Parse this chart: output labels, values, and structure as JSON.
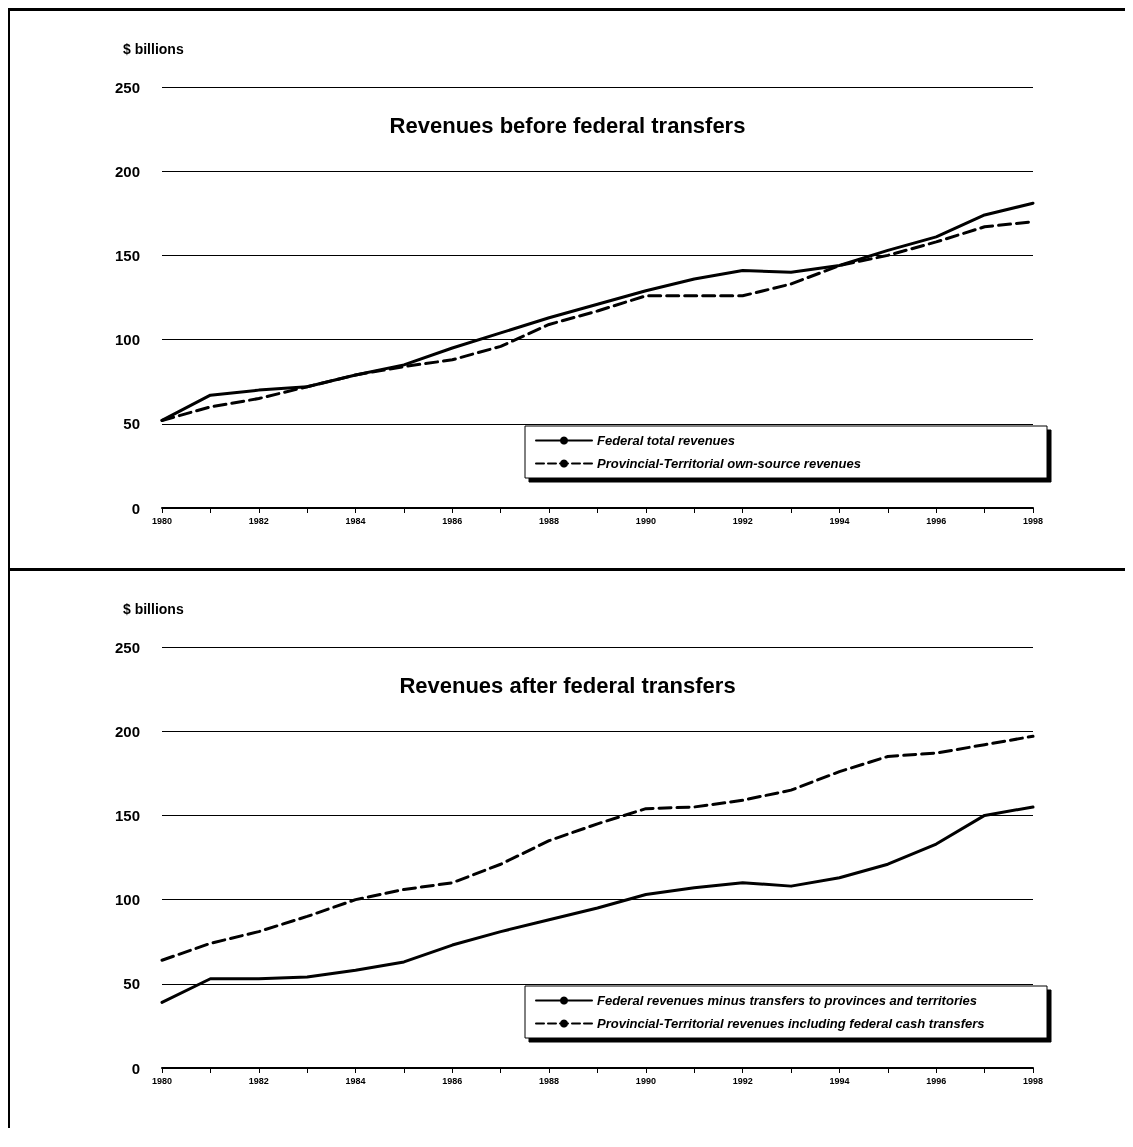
{
  "chart_data": [
    {
      "type": "line",
      "title": "Revenues before federal transfers",
      "ylabel": "$ billions",
      "categories": [
        "1980",
        null,
        "1982",
        null,
        "1984",
        null,
        "1986",
        null,
        "1988",
        null,
        "1990",
        null,
        "1992",
        null,
        "1994",
        null,
        "1996",
        null,
        "1998"
      ],
      "ylim": [
        0,
        250
      ],
      "yticks": [
        0,
        50,
        100,
        150,
        200,
        250
      ],
      "grid": "y",
      "legend": "bottom right",
      "marker": "none",
      "series": [
        {
          "name": "Federal total revenues",
          "color": "#000000",
          "line_style": "solid",
          "values": [
            52,
            67,
            70,
            72,
            79,
            85,
            95,
            104,
            113,
            121,
            129,
            136,
            141,
            140,
            144,
            153,
            161,
            174,
            181
          ]
        },
        {
          "name": "Provincial-Territorial own-source revenues",
          "color": "#000000",
          "line_style": "dashed",
          "values": [
            52,
            60,
            65,
            72,
            79,
            84,
            88,
            96,
            109,
            117,
            126,
            126,
            126,
            133,
            144,
            150,
            158,
            167,
            170
          ]
        }
      ]
    },
    {
      "type": "line",
      "title": "Revenues after federal transfers",
      "ylabel": "$ billions",
      "categories": [
        "1980",
        null,
        "1982",
        null,
        "1984",
        null,
        "1986",
        null,
        "1988",
        null,
        "1990",
        null,
        "1992",
        null,
        "1994",
        null,
        "1996",
        null,
        "1998"
      ],
      "ylim": [
        0,
        250
      ],
      "yticks": [
        0,
        50,
        100,
        150,
        200,
        250
      ],
      "grid": "y",
      "legend": "bottom right",
      "marker": "none",
      "series": [
        {
          "name": "Federal revenues minus transfers to provinces and territories",
          "color": "#000000",
          "line_style": "solid",
          "values": [
            39,
            53,
            53,
            54,
            58,
            63,
            73,
            81,
            88,
            95,
            103,
            107,
            110,
            108,
            113,
            121,
            133,
            150,
            155
          ]
        },
        {
          "name": "Provincial-Territorial revenues including federal cash transfers",
          "color": "#000000",
          "line_style": "dashed",
          "values": [
            64,
            74,
            81,
            90,
            100,
            106,
            110,
            121,
            135,
            145,
            154,
            155,
            159,
            165,
            176,
            185,
            187,
            192,
            197
          ]
        }
      ]
    }
  ]
}
